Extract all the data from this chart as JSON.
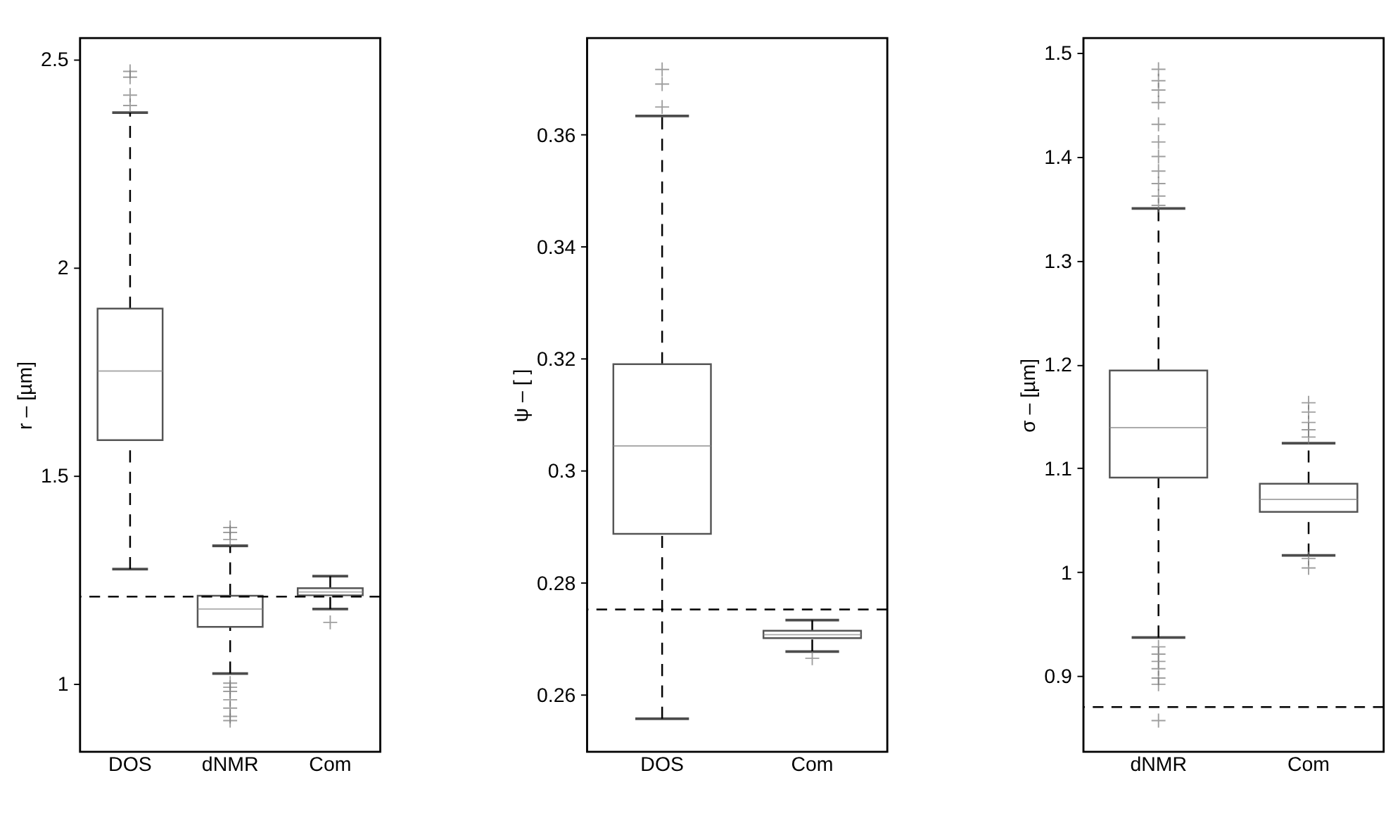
{
  "chart_data": [
    {
      "type": "box",
      "ylabel": "r – [µm]",
      "categories": [
        "DOS",
        "dNMR",
        "Com"
      ],
      "ylim": [
        0.835,
        2.55
      ],
      "yticks": [
        1,
        1.5,
        2,
        2.5
      ],
      "grid": false,
      "boxes": [
        {
          "low": 1.274,
          "q1": 1.584,
          "median": 1.75,
          "q3": 1.9,
          "high": 2.371,
          "outliers": [
            2.47,
            2.456,
            2.413,
            2.388
          ]
        },
        {
          "low": 1.023,
          "q1": 1.135,
          "median": 1.178,
          "q3": 1.21,
          "high": 1.33,
          "outliers": [
            1.374,
            1.362,
            1.345,
            1.0,
            0.99,
            0.98,
            0.96,
            0.94,
            0.92,
            0.91
          ]
        },
        {
          "low": 1.178,
          "q1": 1.211,
          "median": 1.219,
          "q3": 1.228,
          "high": 1.257,
          "outliers": [
            1.146
          ]
        }
      ],
      "ref_lines": [
        {
          "axis": "y",
          "value": 1.208,
          "line_style": "dashed",
          "color": "#000000"
        }
      ]
    },
    {
      "type": "box",
      "ylabel": "ψ – [ ]",
      "categories": [
        "DOS",
        "Com"
      ],
      "ylim": [
        0.2498,
        0.3772
      ],
      "yticks": [
        0.26,
        0.28,
        0.3,
        0.32,
        0.34,
        0.36
      ],
      "grid": false,
      "boxes": [
        {
          "low": 0.2557,
          "q1": 0.2887,
          "median": 0.3044,
          "q3": 0.319,
          "high": 0.3633,
          "outliers": [
            0.3716,
            0.369,
            0.3649
          ]
        },
        {
          "low": 0.2677,
          "q1": 0.2701,
          "median": 0.2707,
          "q3": 0.2714,
          "high": 0.2733,
          "outliers": [
            0.2665
          ]
        }
      ],
      "ref_lines": [
        {
          "axis": "y",
          "value": 0.2752,
          "line_style": "dashed",
          "color": "#000000"
        }
      ]
    },
    {
      "type": "box",
      "ylabel": "σ – [µm]",
      "categories": [
        "dNMR",
        "Com"
      ],
      "ylim": [
        0.827,
        1.514
      ],
      "yticks": [
        0.9,
        1,
        1.1,
        1.2,
        1.3,
        1.4,
        1.5
      ],
      "grid": false,
      "boxes": [
        {
          "low": 0.937,
          "q1": 1.091,
          "median": 1.139,
          "q3": 1.194,
          "high": 1.35,
          "outliers": [
            1.484,
            1.473,
            1.464,
            1.452,
            1.431,
            1.414,
            1.4,
            1.386,
            1.374,
            1.362,
            1.353,
            0.928,
            0.921,
            0.914,
            0.907,
            0.898,
            0.892,
            0.857
          ]
        },
        {
          "low": 1.016,
          "q1": 1.058,
          "median": 1.07,
          "q3": 1.085,
          "high": 1.124,
          "outliers": [
            1.163,
            1.154,
            1.144,
            1.137,
            1.13,
            1.013,
            1.004
          ]
        }
      ],
      "ref_lines": [
        {
          "axis": "y",
          "value": 0.87,
          "line_style": "dashed",
          "color": "#000000"
        }
      ]
    }
  ]
}
